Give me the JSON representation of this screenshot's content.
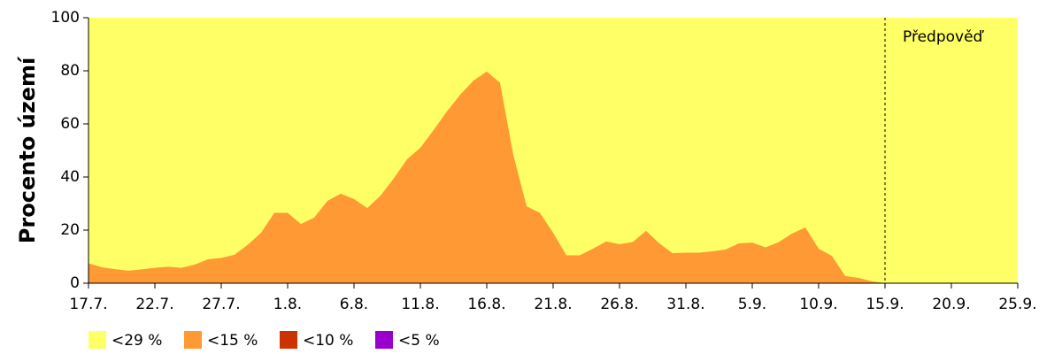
{
  "chart_data": {
    "type": "area",
    "ylabel": "Procento území",
    "categories": [
      "17.7.",
      null,
      null,
      null,
      null,
      "22.7.",
      null,
      null,
      null,
      null,
      "27.7.",
      null,
      null,
      null,
      null,
      "1.8.",
      null,
      null,
      null,
      null,
      "6.8.",
      null,
      null,
      null,
      null,
      "11.8.",
      null,
      null,
      null,
      null,
      "16.8.",
      null,
      null,
      null,
      null,
      "21.8.",
      null,
      null,
      null,
      null,
      "26.8.",
      null,
      null,
      null,
      null,
      "31.8.",
      null,
      null,
      null,
      null,
      "5.9.",
      null,
      null,
      null,
      null,
      "10.9.",
      null,
      null,
      null,
      null,
      "15.9.",
      null,
      null,
      null,
      null,
      "20.9.",
      null,
      null,
      null,
      null,
      "25.9."
    ],
    "series": [
      {
        "name": "<29 %",
        "color": "#ffff66",
        "values": [
          100,
          100,
          100,
          100,
          100,
          100,
          100,
          100,
          100,
          100,
          100,
          100,
          100,
          100,
          100,
          100,
          100,
          100,
          100,
          100,
          100,
          100,
          100,
          100,
          100,
          100,
          100,
          100,
          100,
          100,
          100,
          100,
          100,
          100,
          100,
          100,
          100,
          100,
          100,
          100,
          100,
          100,
          100,
          100,
          100,
          100,
          100,
          100,
          100,
          100,
          100,
          100,
          100,
          100,
          100,
          100,
          100,
          100,
          100,
          100,
          100,
          100,
          100,
          100,
          100,
          100,
          100,
          100,
          100,
          100,
          100
        ]
      },
      {
        "name": "<15 %",
        "color": "#ff9933",
        "values": [
          7.5,
          6,
          5.3,
          4.7,
          5.2,
          5.8,
          6.2,
          5.8,
          7,
          9,
          9.5,
          10.7,
          14.5,
          19,
          26.5,
          26.5,
          22.3,
          24.7,
          31,
          33.7,
          31.7,
          28.3,
          33,
          39.5,
          46.7,
          51,
          57.7,
          64.7,
          71,
          76.3,
          79.7,
          75.5,
          48.3,
          29,
          26.5,
          19,
          10.5,
          10.5,
          13,
          15.7,
          14.7,
          15.5,
          19.7,
          15,
          11.3,
          11.5,
          11.5,
          12,
          12.7,
          15,
          15.3,
          13.5,
          15.5,
          18.7,
          21,
          13,
          10.3,
          2.7,
          2,
          0.7,
          0,
          null,
          null,
          null,
          null,
          null,
          null,
          null,
          null,
          null,
          null
        ]
      },
      {
        "name": "<10 %",
        "color": "#cc3300",
        "values": [
          0,
          0,
          0,
          0,
          0,
          0,
          0,
          0,
          0,
          0,
          0,
          0,
          0,
          0,
          0,
          0,
          0,
          0,
          0,
          0,
          0,
          0,
          0,
          0,
          0,
          0,
          0,
          0,
          0,
          0,
          0,
          0,
          0,
          0,
          0,
          0,
          0,
          0,
          0,
          0,
          0,
          0,
          0,
          0,
          0,
          0,
          0,
          0,
          0,
          0,
          0,
          0,
          0,
          0,
          0,
          0,
          0,
          0,
          0,
          0,
          0,
          null,
          null,
          null,
          null,
          null,
          null,
          null,
          null,
          null,
          null
        ]
      },
      {
        "name": "<5 %",
        "color": "#9900cc",
        "values": [
          0,
          0,
          0,
          0,
          0,
          0,
          0,
          0,
          0,
          0,
          0,
          0,
          0,
          0,
          0,
          0,
          0,
          0,
          0,
          0,
          0,
          0,
          0,
          0,
          0,
          0,
          0,
          0,
          0,
          0,
          0,
          0,
          0,
          0,
          0,
          0,
          0,
          0,
          0,
          0,
          0,
          0,
          0,
          0,
          0,
          0,
          0,
          0,
          0,
          0,
          0,
          0,
          0,
          0,
          0,
          0,
          0,
          0,
          0,
          0,
          0,
          null,
          null,
          null,
          null,
          null,
          null,
          null,
          null,
          null,
          null
        ]
      }
    ],
    "forecast": {
      "label": "Předpověď",
      "at": "15.9."
    },
    "ylim": [
      0,
      100
    ],
    "yticks": [
      0,
      20,
      40,
      60,
      80,
      100
    ]
  }
}
